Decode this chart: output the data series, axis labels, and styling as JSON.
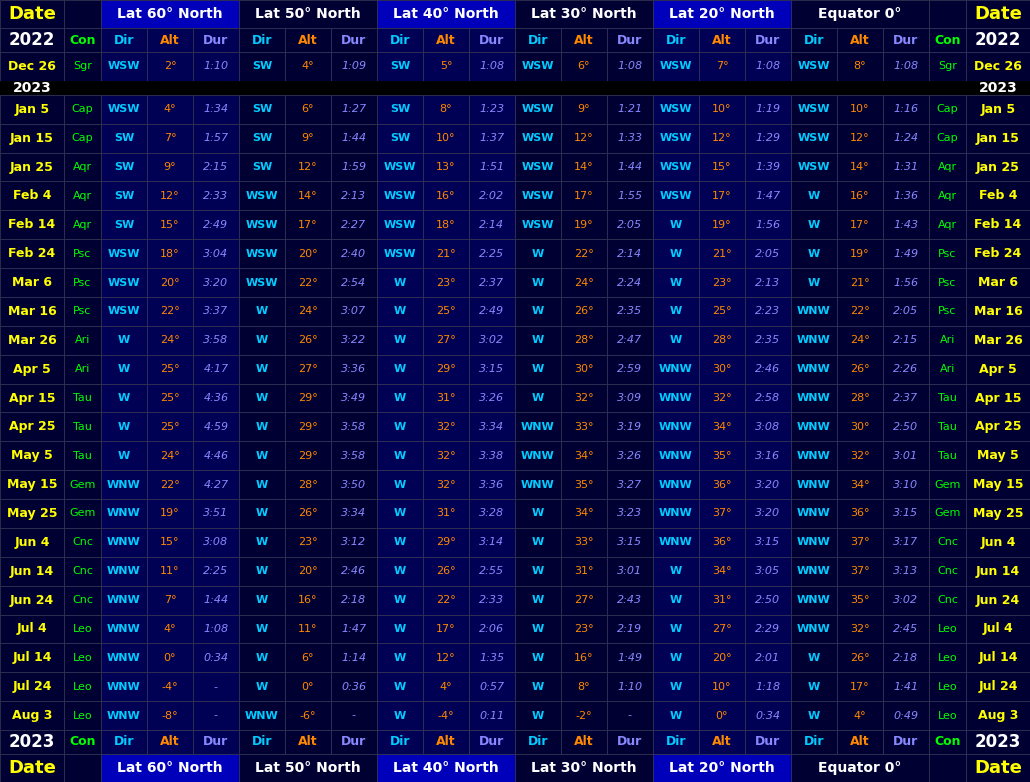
{
  "bg_color": "#000000",
  "dark_blue": "#000033",
  "med_blue": "#000055",
  "bright_blue1": "#0000AA",
  "bright_blue2": "#0000CC",
  "date_color": "#FFFF00",
  "con_color": "#00FF00",
  "dir_color": "#00CCFF",
  "alt_color": "#FF8800",
  "dur_color": "#8888FF",
  "white": "#FFFFFF",
  "year_color": "#FFFFFF",
  "lat_headers": [
    "Lat 60° North",
    "Lat 50° North",
    "Lat 40° North",
    "Lat 30° North",
    "Lat 20° North",
    "Equator 0°"
  ],
  "lat_bg_colors": [
    "#0000BB",
    "#000033",
    "#0000BB",
    "#000033",
    "#0000BB",
    "#000033"
  ],
  "rows": [
    {
      "date": "Dec 26",
      "con": "Sgr",
      "data": [
        [
          "WSW",
          "2°",
          "1:10"
        ],
        [
          "SW",
          "4°",
          "1:09"
        ],
        [
          "SW",
          "5°",
          "1:08"
        ],
        [
          "WSW",
          "6°",
          "1:08"
        ],
        [
          "WSW",
          "7°",
          "1:08"
        ],
        [
          "WSW",
          "8°",
          "1:08"
        ]
      ]
    },
    {
      "date": "2023",
      "con": "",
      "data": null
    },
    {
      "date": "Jan 5",
      "con": "Cap",
      "data": [
        [
          "WSW",
          "4°",
          "1:34"
        ],
        [
          "SW",
          "6°",
          "1:27"
        ],
        [
          "SW",
          "8°",
          "1:23"
        ],
        [
          "WSW",
          "9°",
          "1:21"
        ],
        [
          "WSW",
          "10°",
          "1:19"
        ],
        [
          "WSW",
          "10°",
          "1:16"
        ]
      ]
    },
    {
      "date": "Jan 15",
      "con": "Cap",
      "data": [
        [
          "SW",
          "7°",
          "1:57"
        ],
        [
          "SW",
          "9°",
          "1:44"
        ],
        [
          "SW",
          "10°",
          "1:37"
        ],
        [
          "WSW",
          "12°",
          "1:33"
        ],
        [
          "WSW",
          "12°",
          "1:29"
        ],
        [
          "WSW",
          "12°",
          "1:24"
        ]
      ]
    },
    {
      "date": "Jan 25",
      "con": "Aqr",
      "data": [
        [
          "SW",
          "9°",
          "2:15"
        ],
        [
          "SW",
          "12°",
          "1:59"
        ],
        [
          "WSW",
          "13°",
          "1:51"
        ],
        [
          "WSW",
          "14°",
          "1:44"
        ],
        [
          "WSW",
          "15°",
          "1:39"
        ],
        [
          "WSW",
          "14°",
          "1:31"
        ]
      ]
    },
    {
      "date": "Feb 4",
      "con": "Aqr",
      "data": [
        [
          "SW",
          "12°",
          "2:33"
        ],
        [
          "WSW",
          "14°",
          "2:13"
        ],
        [
          "WSW",
          "16°",
          "2:02"
        ],
        [
          "WSW",
          "17°",
          "1:55"
        ],
        [
          "WSW",
          "17°",
          "1:47"
        ],
        [
          "W",
          "16°",
          "1:36"
        ]
      ]
    },
    {
      "date": "Feb 14",
      "con": "Aqr",
      "data": [
        [
          "SW",
          "15°",
          "2:49"
        ],
        [
          "WSW",
          "17°",
          "2:27"
        ],
        [
          "WSW",
          "18°",
          "2:14"
        ],
        [
          "WSW",
          "19°",
          "2:05"
        ],
        [
          "W",
          "19°",
          "1:56"
        ],
        [
          "W",
          "17°",
          "1:43"
        ]
      ]
    },
    {
      "date": "Feb 24",
      "con": "Psc",
      "data": [
        [
          "WSW",
          "18°",
          "3:04"
        ],
        [
          "WSW",
          "20°",
          "2:40"
        ],
        [
          "WSW",
          "21°",
          "2:25"
        ],
        [
          "W",
          "22°",
          "2:14"
        ],
        [
          "W",
          "21°",
          "2:05"
        ],
        [
          "W",
          "19°",
          "1:49"
        ]
      ]
    },
    {
      "date": "Mar 6",
      "con": "Psc",
      "data": [
        [
          "WSW",
          "20°",
          "3:20"
        ],
        [
          "WSW",
          "22°",
          "2:54"
        ],
        [
          "W",
          "23°",
          "2:37"
        ],
        [
          "W",
          "24°",
          "2:24"
        ],
        [
          "W",
          "23°",
          "2:13"
        ],
        [
          "W",
          "21°",
          "1:56"
        ]
      ]
    },
    {
      "date": "Mar 16",
      "con": "Psc",
      "data": [
        [
          "WSW",
          "22°",
          "3:37"
        ],
        [
          "W",
          "24°",
          "3:07"
        ],
        [
          "W",
          "25°",
          "2:49"
        ],
        [
          "W",
          "26°",
          "2:35"
        ],
        [
          "W",
          "25°",
          "2:23"
        ],
        [
          "WNW",
          "22°",
          "2:05"
        ]
      ]
    },
    {
      "date": "Mar 26",
      "con": "Ari",
      "data": [
        [
          "W",
          "24°",
          "3:58"
        ],
        [
          "W",
          "26°",
          "3:22"
        ],
        [
          "W",
          "27°",
          "3:02"
        ],
        [
          "W",
          "28°",
          "2:47"
        ],
        [
          "W",
          "28°",
          "2:35"
        ],
        [
          "WNW",
          "24°",
          "2:15"
        ]
      ]
    },
    {
      "date": "Apr 5",
      "con": "Ari",
      "data": [
        [
          "W",
          "25°",
          "4:17"
        ],
        [
          "W",
          "27°",
          "3:36"
        ],
        [
          "W",
          "29°",
          "3:15"
        ],
        [
          "W",
          "30°",
          "2:59"
        ],
        [
          "WNW",
          "30°",
          "2:46"
        ],
        [
          "WNW",
          "26°",
          "2:26"
        ]
      ]
    },
    {
      "date": "Apr 15",
      "con": "Tau",
      "data": [
        [
          "W",
          "25°",
          "4:36"
        ],
        [
          "W",
          "29°",
          "3:49"
        ],
        [
          "W",
          "31°",
          "3:26"
        ],
        [
          "W",
          "32°",
          "3:09"
        ],
        [
          "WNW",
          "32°",
          "2:58"
        ],
        [
          "WNW",
          "28°",
          "2:37"
        ]
      ]
    },
    {
      "date": "Apr 25",
      "con": "Tau",
      "data": [
        [
          "W",
          "25°",
          "4:59"
        ],
        [
          "W",
          "29°",
          "3:58"
        ],
        [
          "W",
          "32°",
          "3:34"
        ],
        [
          "WNW",
          "33°",
          "3:19"
        ],
        [
          "WNW",
          "34°",
          "3:08"
        ],
        [
          "WNW",
          "30°",
          "2:50"
        ]
      ]
    },
    {
      "date": "May 5",
      "con": "Tau",
      "data": [
        [
          "W",
          "24°",
          "4:46"
        ],
        [
          "W",
          "29°",
          "3:58"
        ],
        [
          "W",
          "32°",
          "3:38"
        ],
        [
          "WNW",
          "34°",
          "3:26"
        ],
        [
          "WNW",
          "35°",
          "3:16"
        ],
        [
          "WNW",
          "32°",
          "3:01"
        ]
      ]
    },
    {
      "date": "May 15",
      "con": "Gem",
      "data": [
        [
          "WNW",
          "22°",
          "4:27"
        ],
        [
          "W",
          "28°",
          "3:50"
        ],
        [
          "W",
          "32°",
          "3:36"
        ],
        [
          "WNW",
          "35°",
          "3:27"
        ],
        [
          "WNW",
          "36°",
          "3:20"
        ],
        [
          "WNW",
          "34°",
          "3:10"
        ]
      ]
    },
    {
      "date": "May 25",
      "con": "Gem",
      "data": [
        [
          "WNW",
          "19°",
          "3:51"
        ],
        [
          "W",
          "26°",
          "3:34"
        ],
        [
          "W",
          "31°",
          "3:28"
        ],
        [
          "W",
          "34°",
          "3:23"
        ],
        [
          "WNW",
          "37°",
          "3:20"
        ],
        [
          "WNW",
          "36°",
          "3:15"
        ]
      ]
    },
    {
      "date": "Jun 4",
      "con": "Cnc",
      "data": [
        [
          "WNW",
          "15°",
          "3:08"
        ],
        [
          "W",
          "23°",
          "3:12"
        ],
        [
          "W",
          "29°",
          "3:14"
        ],
        [
          "W",
          "33°",
          "3:15"
        ],
        [
          "WNW",
          "36°",
          "3:15"
        ],
        [
          "WNW",
          "37°",
          "3:17"
        ]
      ]
    },
    {
      "date": "Jun 14",
      "con": "Cnc",
      "data": [
        [
          "WNW",
          "11°",
          "2:25"
        ],
        [
          "W",
          "20°",
          "2:46"
        ],
        [
          "W",
          "26°",
          "2:55"
        ],
        [
          "W",
          "31°",
          "3:01"
        ],
        [
          "W",
          "34°",
          "3:05"
        ],
        [
          "WNW",
          "37°",
          "3:13"
        ]
      ]
    },
    {
      "date": "Jun 24",
      "con": "Cnc",
      "data": [
        [
          "WNW",
          "7°",
          "1:44"
        ],
        [
          "W",
          "16°",
          "2:18"
        ],
        [
          "W",
          "22°",
          "2:33"
        ],
        [
          "W",
          "27°",
          "2:43"
        ],
        [
          "W",
          "31°",
          "2:50"
        ],
        [
          "WNW",
          "35°",
          "3:02"
        ]
      ]
    },
    {
      "date": "Jul 4",
      "con": "Leo",
      "data": [
        [
          "WNW",
          "4°",
          "1:08"
        ],
        [
          "W",
          "11°",
          "1:47"
        ],
        [
          "W",
          "17°",
          "2:06"
        ],
        [
          "W",
          "23°",
          "2:19"
        ],
        [
          "W",
          "27°",
          "2:29"
        ],
        [
          "WNW",
          "32°",
          "2:45"
        ]
      ]
    },
    {
      "date": "Jul 14",
      "con": "Leo",
      "data": [
        [
          "WNW",
          "0°",
          "0:34"
        ],
        [
          "W",
          "6°",
          "1:14"
        ],
        [
          "W",
          "12°",
          "1:35"
        ],
        [
          "W",
          "16°",
          "1:49"
        ],
        [
          "W",
          "20°",
          "2:01"
        ],
        [
          "W",
          "26°",
          "2:18"
        ]
      ]
    },
    {
      "date": "Jul 24",
      "con": "Leo",
      "data": [
        [
          "WNW",
          "-4°",
          "-"
        ],
        [
          "W",
          "0°",
          "0:36"
        ],
        [
          "W",
          "4°",
          "0:57"
        ],
        [
          "W",
          "8°",
          "1:10"
        ],
        [
          "W",
          "10°",
          "1:18"
        ],
        [
          "W",
          "17°",
          "1:41"
        ]
      ]
    },
    {
      "date": "Aug 3",
      "con": "Leo",
      "data": [
        [
          "WNW",
          "-8°",
          "-"
        ],
        [
          "WNW",
          "-6°",
          "-"
        ],
        [
          "W",
          "-4°",
          "0:11"
        ],
        [
          "W",
          "-2°",
          "-"
        ],
        [
          "W",
          "0°",
          "0:34"
        ],
        [
          "W",
          "4°",
          "0:49"
        ]
      ]
    }
  ]
}
